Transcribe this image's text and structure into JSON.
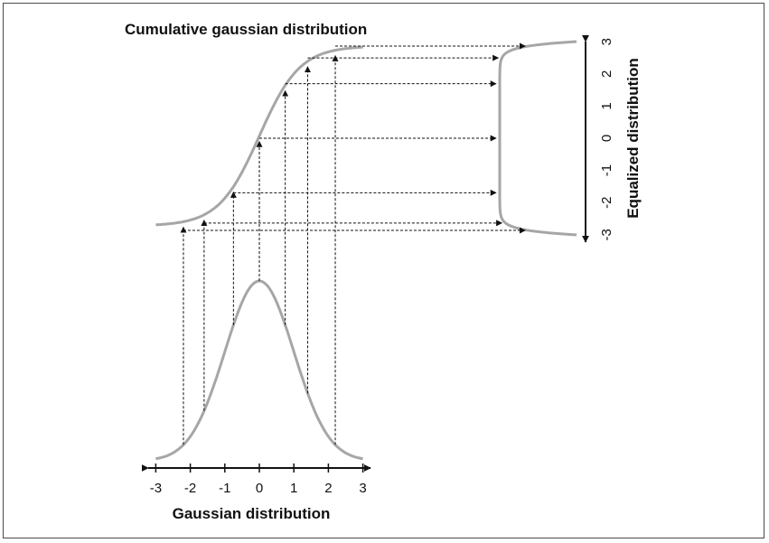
{
  "cdf_title": "Cumulative gaussian distribution",
  "x_axis_label": "Gaussian distribution",
  "y_axis_label": "Equalized distribution",
  "x_ticks": [
    "-3",
    "-2",
    "-1",
    "0",
    "1",
    "2",
    "3"
  ],
  "y_ticks": [
    "-3",
    "-2",
    "-1",
    "0",
    "1",
    "2",
    "3"
  ],
  "sample_points": [
    -2.2,
    -1.6,
    -0.75,
    0,
    0.75,
    1.4,
    2.2
  ],
  "colors": {
    "curve": "#a6a6a6",
    "arrow": "#111111",
    "frame": "#4a4a4a"
  }
}
